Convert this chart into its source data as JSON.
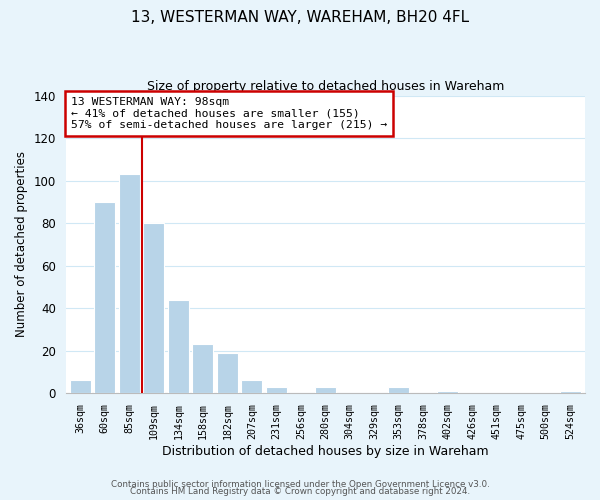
{
  "title": "13, WESTERMAN WAY, WAREHAM, BH20 4FL",
  "subtitle": "Size of property relative to detached houses in Wareham",
  "xlabel": "Distribution of detached houses by size in Wareham",
  "ylabel": "Number of detached properties",
  "bar_labels": [
    "36sqm",
    "60sqm",
    "85sqm",
    "109sqm",
    "134sqm",
    "158sqm",
    "182sqm",
    "207sqm",
    "231sqm",
    "256sqm",
    "280sqm",
    "304sqm",
    "329sqm",
    "353sqm",
    "378sqm",
    "402sqm",
    "426sqm",
    "451sqm",
    "475sqm",
    "500sqm",
    "524sqm"
  ],
  "bar_values": [
    6,
    90,
    103,
    80,
    44,
    23,
    19,
    6,
    3,
    0,
    3,
    0,
    0,
    3,
    0,
    1,
    0,
    0,
    0,
    0,
    1
  ],
  "bar_color": "#b8d4e8",
  "vline_color": "#cc0000",
  "vline_x_idx": 2.5,
  "ylim": [
    0,
    140
  ],
  "yticks": [
    0,
    20,
    40,
    60,
    80,
    100,
    120,
    140
  ],
  "annotation_title": "13 WESTERMAN WAY: 98sqm",
  "annotation_line1": "← 41% of detached houses are smaller (155)",
  "annotation_line2": "57% of semi-detached houses are larger (215) →",
  "footer1": "Contains HM Land Registry data © Crown copyright and database right 2024.",
  "footer2": "Contains public sector information licensed under the Open Government Licence v3.0.",
  "figure_background": "#e8f4fb",
  "plot_background": "#ffffff",
  "grid_color": "#d0e8f5"
}
